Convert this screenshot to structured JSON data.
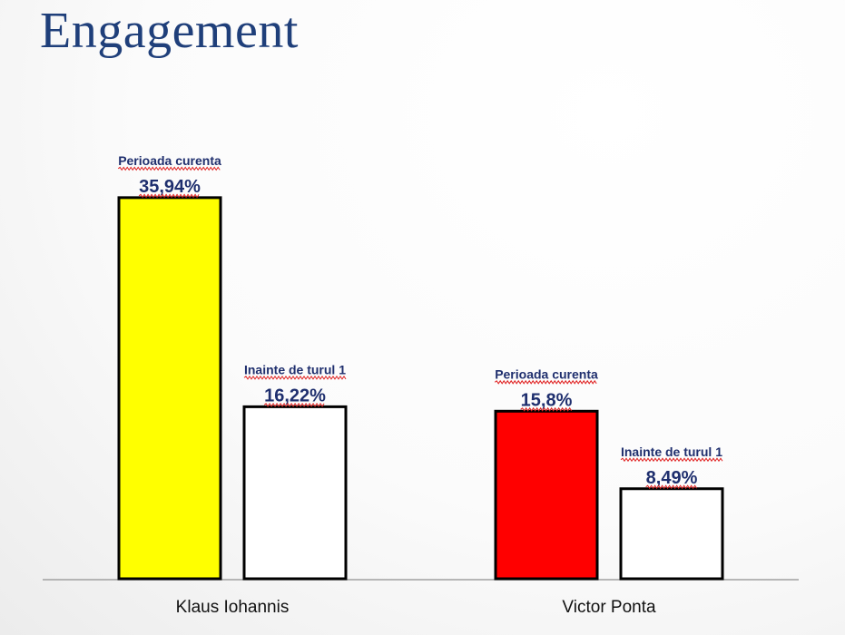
{
  "slide": {
    "title": "Engagement"
  },
  "colors": {
    "title": "#1f3f7a",
    "label_text": "#1f2f6e",
    "bar_outline": "#000000",
    "axis": "#a0a0a0",
    "spellcheck_underline": "#e02020"
  },
  "chart_data": {
    "type": "bar",
    "title": "",
    "xlabel": "",
    "ylabel": "",
    "ylim": [
      0,
      40
    ],
    "grid": false,
    "legend": "none",
    "categories": [
      "Klaus Iohannis",
      "Victor Ponta"
    ],
    "series": [
      {
        "name": "Perioada curenta",
        "values": [
          35.94,
          15.8
        ],
        "value_labels": [
          "35,94%",
          "15,8%"
        ],
        "colors": [
          "#ffff00",
          "#ff0000"
        ]
      },
      {
        "name": "Inainte de turul 1",
        "values": [
          16.22,
          8.49
        ],
        "value_labels": [
          "16,22%",
          "8,49%"
        ],
        "colors": [
          "#ffffff",
          "#ffffff"
        ]
      }
    ]
  }
}
